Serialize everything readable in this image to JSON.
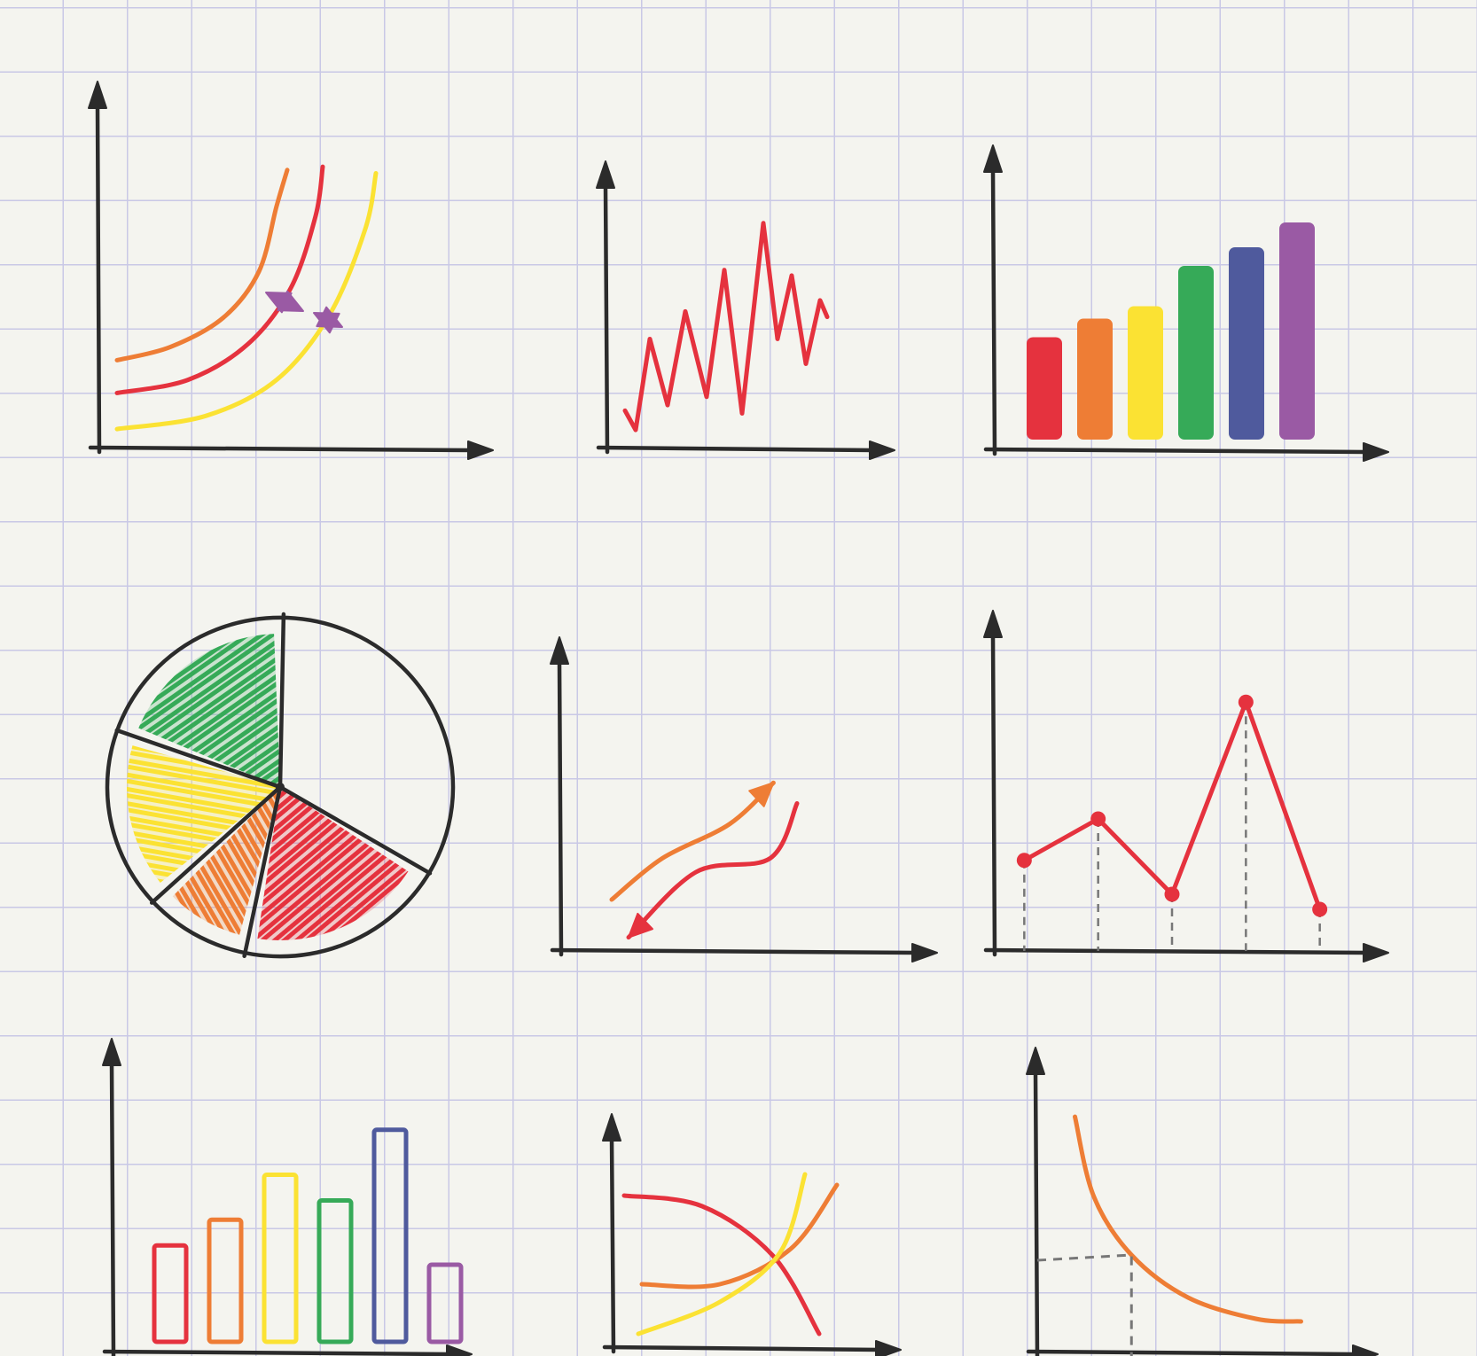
{
  "background": {
    "paper": "#f4f4ef",
    "grid_line": "#c9c8e6",
    "ink": "#2b2b2b"
  },
  "palette": {
    "red": "#e5323e",
    "orange": "#ee7d35",
    "yellow": "#fbe233",
    "green": "#36aa58",
    "blue": "#4f5a9d",
    "purple": "#9a5aa4"
  },
  "chart_data": [
    {
      "id": "indifference-curves",
      "type": "line",
      "series": [
        {
          "color": "orange",
          "x": [
            0.5,
            2,
            3.5,
            4.5,
            5.0,
            5.3
          ],
          "y": [
            2.8,
            3.2,
            4.1,
            5.5,
            7.5,
            8.6
          ]
        },
        {
          "color": "red",
          "x": [
            0.5,
            2.5,
            4.2,
            5.4,
            6.1,
            6.3
          ],
          "y": [
            1.8,
            2.2,
            3.3,
            5.0,
            7.2,
            8.7
          ]
        },
        {
          "color": "yellow",
          "x": [
            0.5,
            3,
            5,
            6.5,
            7.5,
            7.8
          ],
          "y": [
            0.7,
            1.1,
            2.2,
            4.2,
            6.8,
            8.5
          ]
        }
      ],
      "xlim": [
        0,
        10
      ],
      "ylim": [
        0,
        10
      ]
    },
    {
      "id": "zigzag-line",
      "type": "line",
      "series": [
        {
          "color": "red",
          "x": [
            0.5,
            0.8,
            1.2,
            1.7,
            2.2,
            2.8,
            3.3,
            3.8,
            4.4,
            4.8,
            5.2,
            5.6,
            6.0,
            6.2
          ],
          "y": [
            1.5,
            0.8,
            4.1,
            1.7,
            5.1,
            2.0,
            6.6,
            1.4,
            8.3,
            4.1,
            6.4,
            3.2,
            5.5,
            4.9
          ]
        }
      ],
      "xlim": [
        0,
        7
      ],
      "ylim": [
        0,
        9
      ]
    },
    {
      "id": "rainbow-bars",
      "type": "bar",
      "categories": [
        "",
        "",
        "",
        "",
        "",
        ""
      ],
      "values": [
        3.3,
        3.9,
        4.3,
        5.6,
        6.2,
        7.0
      ],
      "colors": [
        "red",
        "orange",
        "yellow",
        "green",
        "blue",
        "purple"
      ],
      "ylim": [
        0,
        8
      ]
    },
    {
      "id": "scribble-pie",
      "type": "pie",
      "values": [
        33,
        20,
        10,
        17,
        20
      ],
      "colors": [
        "none",
        "red",
        "orange",
        "yellow",
        "green"
      ]
    },
    {
      "id": "crossing-arrows",
      "type": "line",
      "series": [
        {
          "color": "orange",
          "arrow": "end",
          "x": [
            1.5,
            3,
            5,
            6.3
          ],
          "y": [
            1.6,
            2.8,
            3.8,
            5.0
          ]
        },
        {
          "color": "red",
          "arrow": "start",
          "x": [
            7.0,
            6.2,
            4,
            2.0
          ],
          "y": [
            4.4,
            2.8,
            2.4,
            0.5
          ]
        }
      ],
      "xlim": [
        0,
        10
      ],
      "ylim": [
        0,
        8
      ]
    },
    {
      "id": "point-line",
      "type": "line",
      "series": [
        {
          "color": "red",
          "x": [
            1,
            2,
            3,
            4,
            5
          ],
          "y": [
            2.5,
            3.6,
            1.6,
            6.7,
            1.2
          ]
        }
      ],
      "drop_lines": true,
      "xlim": [
        0.6,
        5.4
      ],
      "ylim": [
        0,
        8
      ]
    },
    {
      "id": "outline-bars",
      "type": "bar",
      "categories": [
        "",
        "",
        "",
        "",
        "",
        ""
      ],
      "values": [
        3.0,
        3.8,
        5.2,
        4.4,
        6.6,
        2.4
      ],
      "colors": [
        "red",
        "orange",
        "yellow",
        "green",
        "blue",
        "purple"
      ],
      "ylim": [
        0,
        8
      ]
    },
    {
      "id": "supply-demand",
      "type": "line",
      "series": [
        {
          "color": "red",
          "x": [
            0.3,
            2.5,
            4.5,
            5.8
          ],
          "y": [
            4.4,
            4.1,
            2.7,
            0.5
          ]
        },
        {
          "color": "orange",
          "x": [
            0.8,
            3,
            5,
            6.3
          ],
          "y": [
            1.9,
            1.9,
            2.9,
            4.7
          ]
        },
        {
          "color": "yellow",
          "x": [
            0.7,
            3,
            4.7,
            5.4
          ],
          "y": [
            0.5,
            1.4,
            2.8,
            5.0
          ]
        }
      ],
      "xlim": [
        0,
        7
      ],
      "ylim": [
        0,
        5.5
      ]
    },
    {
      "id": "decay-curve",
      "type": "line",
      "series": [
        {
          "color": "orange",
          "x": [
            1,
            1.5,
            2.5,
            4,
            5.8,
            7
          ],
          "y": [
            9,
            6,
            3.8,
            2.2,
            1.4,
            1.3
          ]
        }
      ],
      "reference_point": {
        "x": 2.5,
        "y": 3.8
      },
      "xlim": [
        0,
        8
      ],
      "ylim": [
        0,
        10
      ]
    }
  ]
}
